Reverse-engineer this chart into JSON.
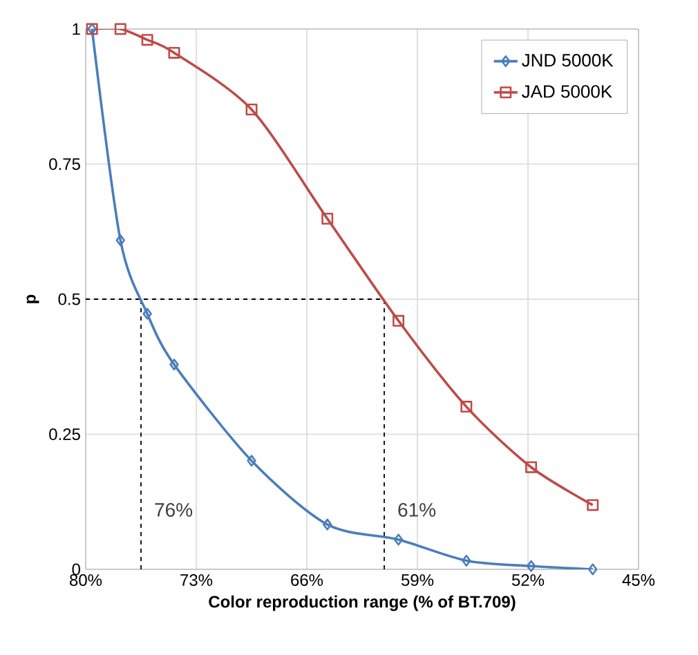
{
  "chart_data": {
    "type": "line",
    "xlabel": "Color reproduction range (% of BT.709)",
    "ylabel": "p",
    "x": [
      79.6,
      77.8,
      76.1,
      74.4,
      69.5,
      64.7,
      60.2,
      55.9,
      51.8,
      47.9
    ],
    "xlim": [
      80,
      45
    ],
    "xticks": [
      {
        "value": 80,
        "label": "80%"
      },
      {
        "value": 73,
        "label": "73%"
      },
      {
        "value": 66,
        "label": "66%"
      },
      {
        "value": 59,
        "label": "59%"
      },
      {
        "value": 52,
        "label": "52%"
      },
      {
        "value": 45,
        "label": "45%"
      }
    ],
    "ylim": [
      0,
      1
    ],
    "yticks": [
      0,
      0.25,
      0.5,
      0.75,
      1
    ],
    "series": [
      {
        "name": "JND 5000K",
        "color": "#4a7ebb",
        "marker": "diamond",
        "values": [
          1,
          0.609,
          0.473,
          0.379,
          0.201,
          0.083,
          0.055,
          0.016,
          0.006,
          0
        ]
      },
      {
        "name": "JAD 5000K",
        "color": "#be4b48",
        "marker": "square",
        "values": [
          1,
          1,
          0.98,
          0.956,
          0.851,
          0.649,
          0.46,
          0.301,
          0.189,
          0.119
        ]
      }
    ],
    "ref_lines": [
      {
        "axis": "y",
        "value": 0.5,
        "line_style": "dashed",
        "color": "#000000"
      },
      {
        "axis": "x",
        "value": 76.5,
        "label": "76%",
        "line_style": "dashed",
        "color": "#000000"
      },
      {
        "axis": "x",
        "value": 61.1,
        "label": "61%",
        "line_style": "dashed",
        "color": "#000000"
      }
    ],
    "grid": true,
    "legend": "top right"
  }
}
